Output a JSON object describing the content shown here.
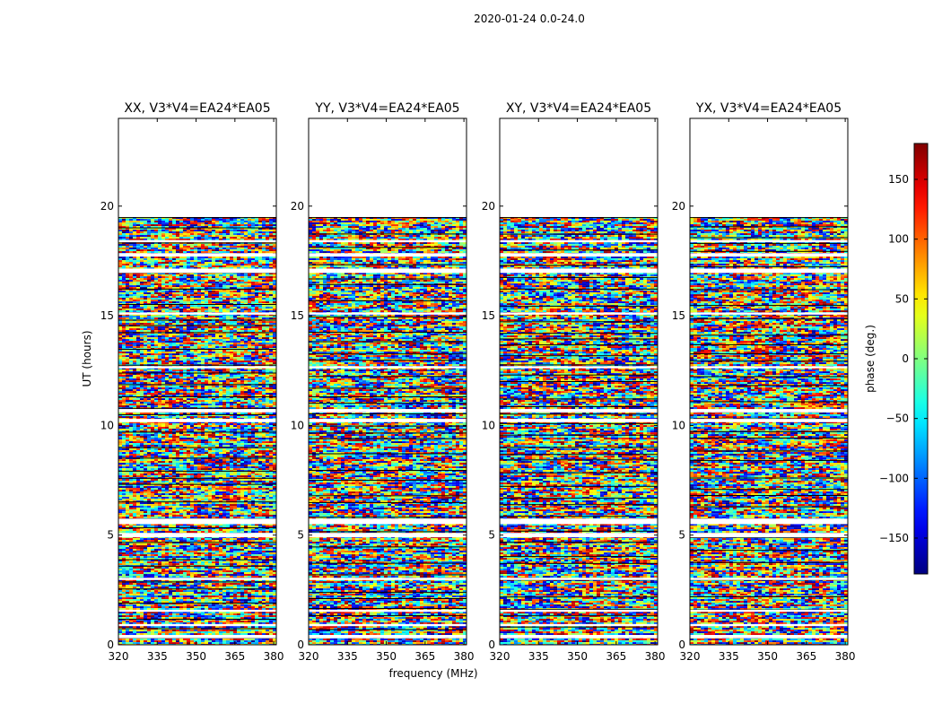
{
  "chart_data": {
    "type": "heatmap",
    "suptitle": "2020-01-24 0.0-24.0",
    "xlabel": "frequency (MHz)",
    "ylabel": "UT (hours)",
    "xlim": [
      320,
      381
    ],
    "ylim": [
      0,
      24
    ],
    "xticks": [
      "320",
      "335",
      "350",
      "365",
      "380"
    ],
    "xtick_values": [
      320,
      335,
      350,
      365,
      380
    ],
    "yticks": [
      "0",
      "5",
      "10",
      "15",
      "20"
    ],
    "ytick_values": [
      0,
      5,
      10,
      15,
      20
    ],
    "data_extent_hours": [
      0,
      19.5
    ],
    "empty_bands_hours": [
      [
        0.3,
        0.45
      ],
      [
        0.85,
        0.95
      ],
      [
        1.5,
        1.6
      ],
      [
        2.95,
        3.05
      ],
      [
        4.9,
        5.1
      ],
      [
        5.5,
        5.75
      ],
      [
        10.15,
        10.3
      ],
      [
        10.6,
        10.75
      ],
      [
        12.6,
        12.7
      ],
      [
        15.05,
        15.15
      ],
      [
        16.95,
        17.15
      ],
      [
        17.7,
        17.85
      ],
      [
        18.35,
        18.45
      ]
    ],
    "panels": [
      {
        "title": "XX, V3*V4=EA24*EA05",
        "polarization": "XX"
      },
      {
        "title": "YY, V3*V4=EA24*EA05",
        "polarization": "YY"
      },
      {
        "title": "XY, V3*V4=EA24*EA05",
        "polarization": "XY"
      },
      {
        "title": "YX, V3*V4=EA24*EA05",
        "polarization": "YX"
      }
    ],
    "colorbar": {
      "label": "phase (deg.)",
      "range": [
        -180,
        180
      ],
      "ticks": [
        "150",
        "100",
        "50",
        "0",
        "−50",
        "−100",
        "−150"
      ],
      "tick_values": [
        150,
        100,
        50,
        0,
        -50,
        -100,
        -150
      ],
      "colormap": "jet"
    }
  }
}
